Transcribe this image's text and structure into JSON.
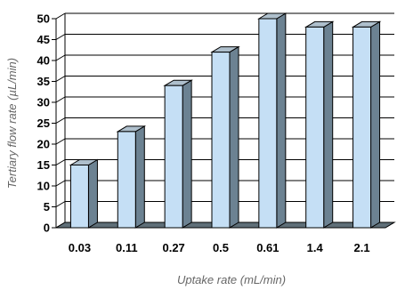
{
  "chart_data": {
    "type": "bar",
    "categories": [
      "0.03",
      "0.11",
      "0.27",
      "0.5",
      "0.61",
      "1.4",
      "2.1"
    ],
    "values": [
      15,
      23,
      34,
      42,
      50,
      48,
      48
    ],
    "title": "",
    "xlabel": "Uptake rate (mL/min)",
    "ylabel": "Tertiary flow rate (µL/min)",
    "ylim": [
      0,
      50
    ],
    "yticks": [
      0,
      5,
      10,
      15,
      20,
      25,
      30,
      35,
      40,
      45,
      50
    ],
    "grid": true,
    "style": "3d-columns",
    "colors": {
      "bar_front": "#c5dff5",
      "bar_side": "#6c8292",
      "bar_top": "#aebfcc",
      "floor": "#5f6f78",
      "grid": "#000000"
    }
  }
}
